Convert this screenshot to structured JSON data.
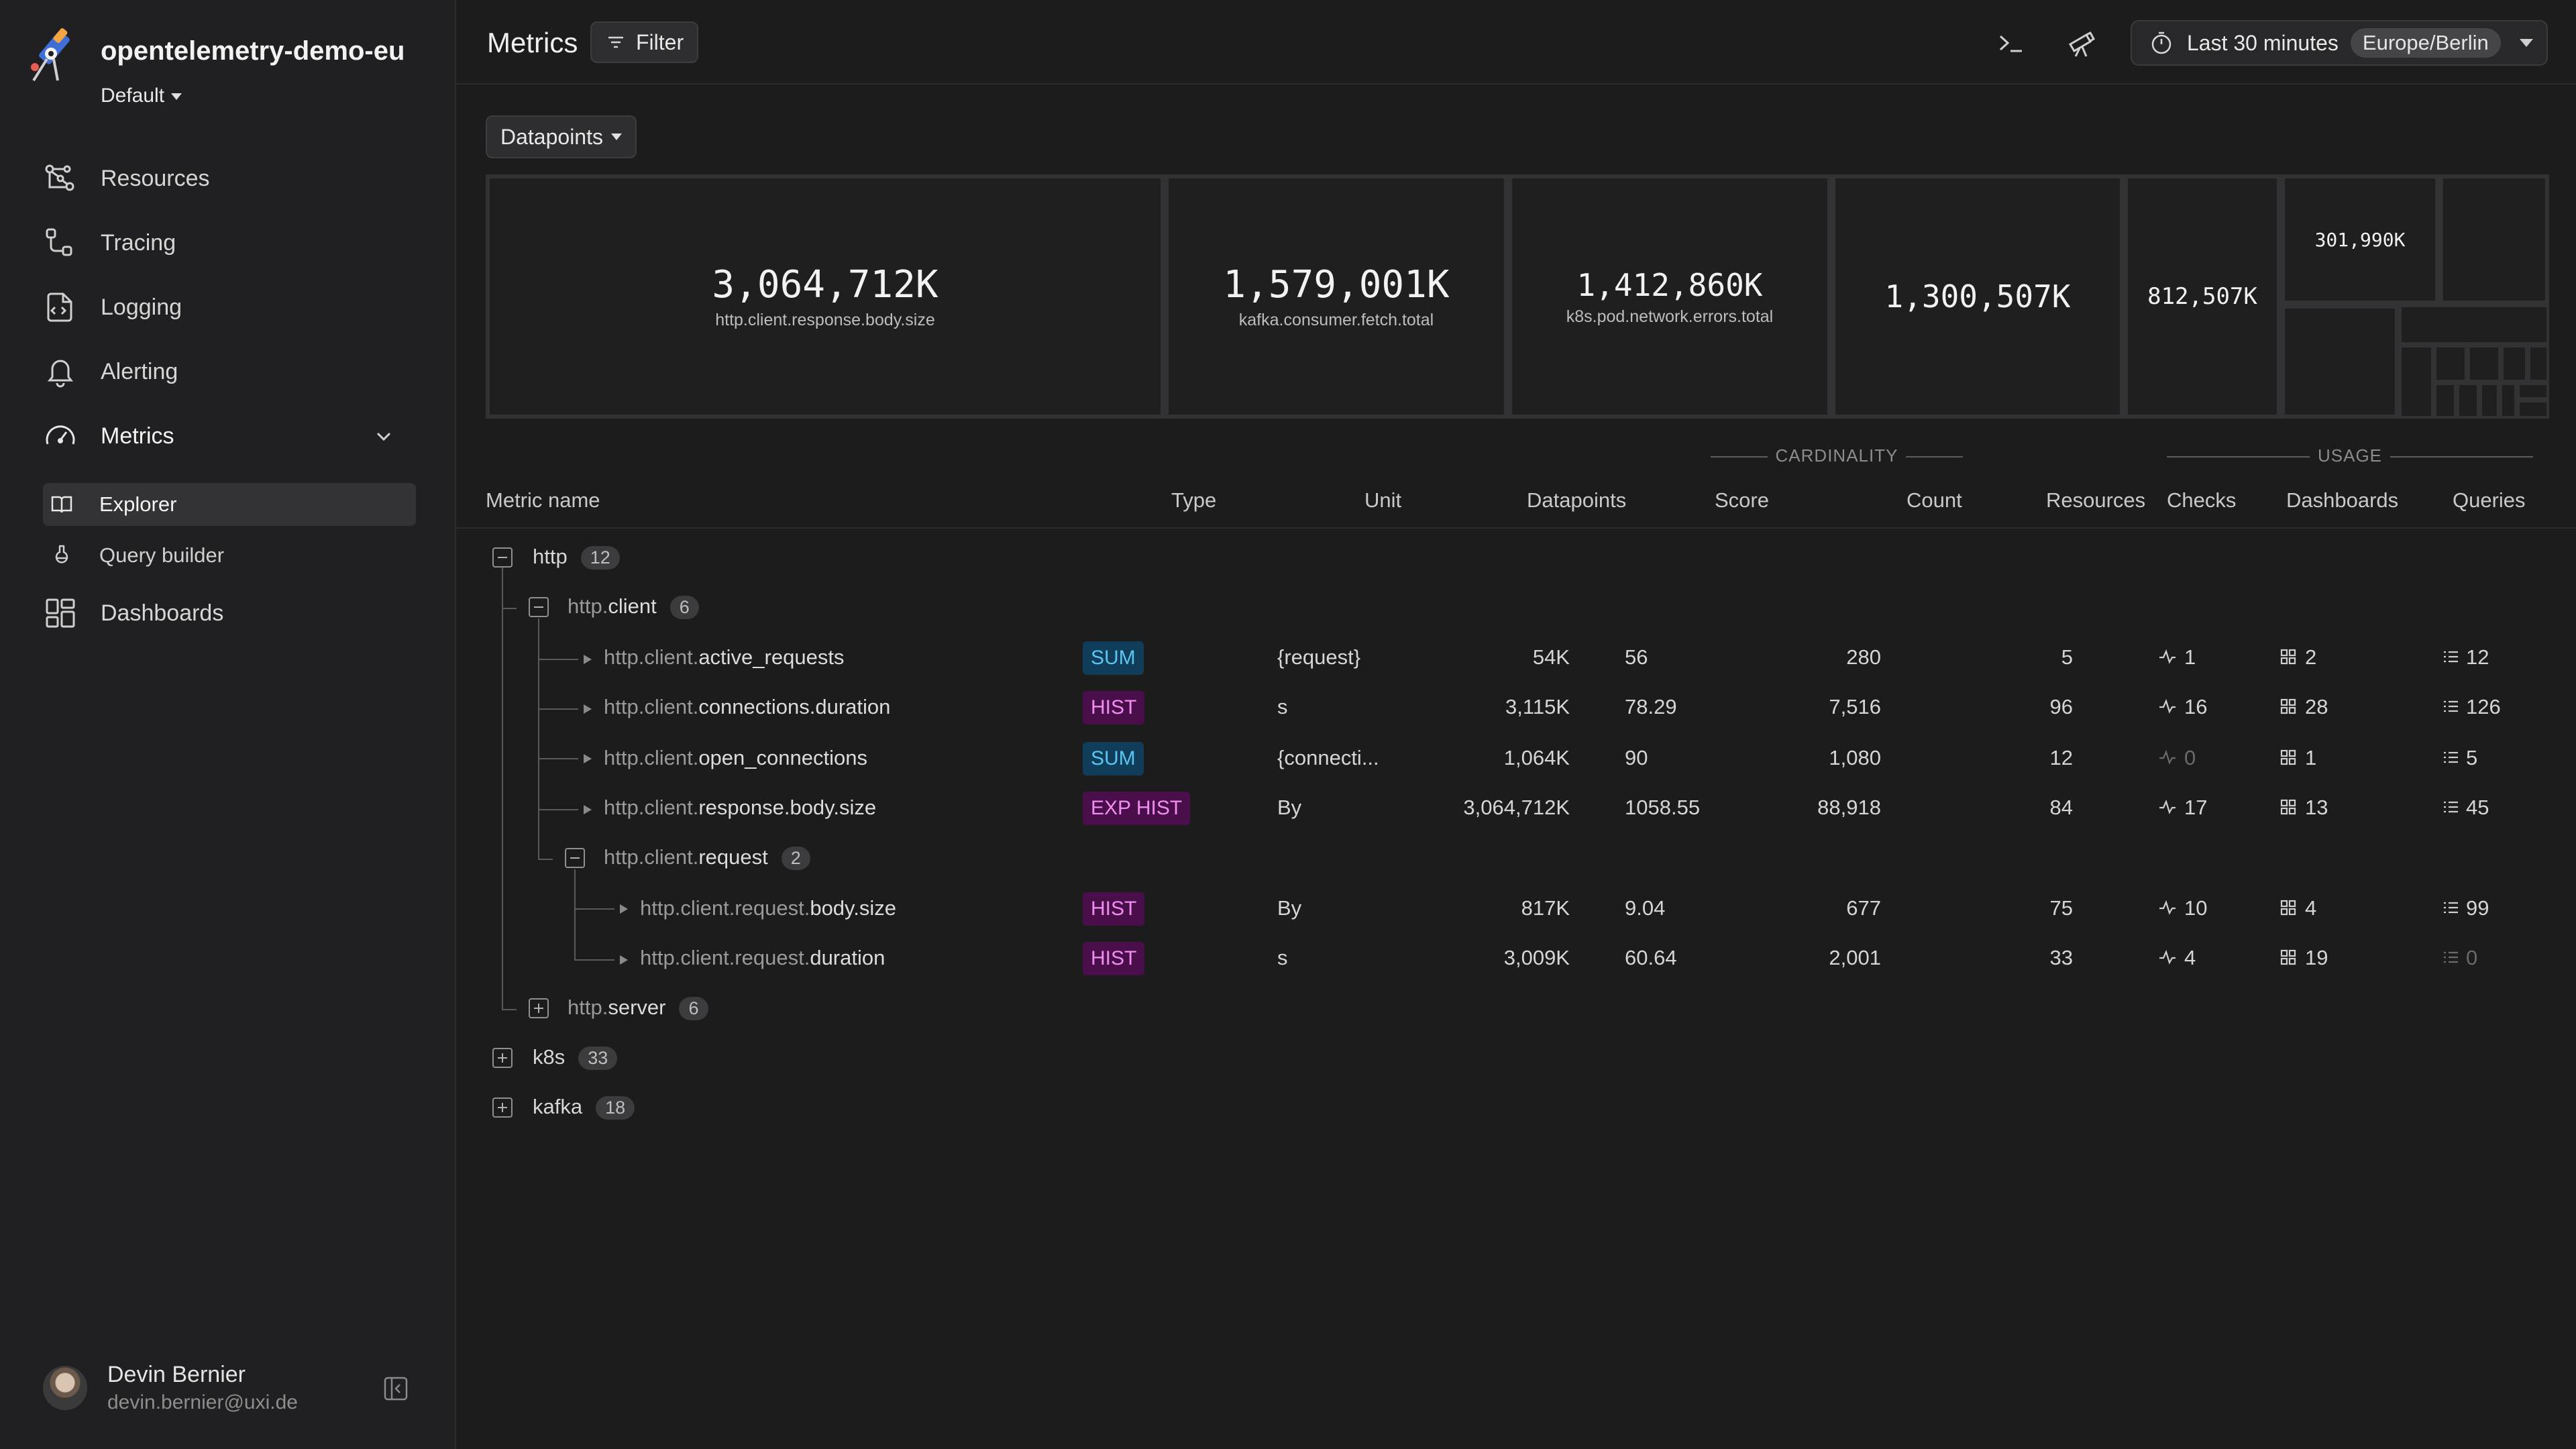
{
  "workspace": {
    "name": "opentelemetry-demo-eu",
    "env": "Default"
  },
  "nav": [
    {
      "label": "Resources",
      "icon": "resources-icon"
    },
    {
      "label": "Tracing",
      "icon": "tracing-icon"
    },
    {
      "label": "Logging",
      "icon": "logging-icon"
    },
    {
      "label": "Alerting",
      "icon": "bell-icon"
    },
    {
      "label": "Metrics",
      "icon": "gauge-icon"
    },
    {
      "label": "Dashboards",
      "icon": "dashboards-icon"
    }
  ],
  "metrics_sub": [
    {
      "label": "Explorer",
      "icon": "book-icon"
    },
    {
      "label": "Query builder",
      "icon": "flask-icon"
    }
  ],
  "user": {
    "name": "Devin Bernier",
    "email": "devin.bernier@uxi.de"
  },
  "header": {
    "title": "Metrics",
    "filter_label": "Filter",
    "time_range": "Last 30 minutes",
    "timezone": "Europe/Berlin"
  },
  "treemap": {
    "selector": "Datapoints",
    "tiles": [
      {
        "value": "3,064,712K",
        "name": "http.client.response.body.size"
      },
      {
        "value": "1,579,001K",
        "name": "kafka.consumer.fetch.total"
      },
      {
        "value": "1,412,860K",
        "name": "k8s.pod.network.errors.total"
      },
      {
        "value": "1,300,507K",
        "name": ""
      },
      {
        "value": "812,507K",
        "name": ""
      },
      {
        "value": "301,990K",
        "name": ""
      }
    ]
  },
  "table": {
    "columns": {
      "name": "Metric name",
      "type": "Type",
      "unit": "Unit",
      "datapoints": "Datapoints",
      "score": "Score",
      "count": "Count",
      "resources": "Resources",
      "checks": "Checks",
      "dashboards": "Dashboards",
      "queries": "Queries"
    },
    "groups": {
      "cardinality": "CARDINALITY",
      "usage": "USAGE"
    },
    "groups_rows": {
      "http": {
        "label": "http",
        "count": "12"
      },
      "http_client": {
        "label_pre": "http.",
        "label_suf": "client",
        "count": "6"
      },
      "http_client_request": {
        "label_pre": "http.client.",
        "label_suf": "request",
        "count": "2"
      },
      "http_server": {
        "label_pre": "http.",
        "label_suf": "server",
        "count": "6"
      },
      "k8s": {
        "label": "k8s",
        "count": "33"
      },
      "kafka": {
        "label": "kafka",
        "count": "18"
      }
    },
    "rows": [
      {
        "pre": "http.client.",
        "suf": "active_requests",
        "type": "SUM",
        "unit": "{request}",
        "datapoints": "54K",
        "score": "56",
        "count": "280",
        "resources": "5",
        "checks": "1",
        "dashboards": "2",
        "queries": "12"
      },
      {
        "pre": "http.client.",
        "suf": "connections.duration",
        "type": "HIST",
        "unit": "s",
        "datapoints": "3,115K",
        "score": "78.29",
        "count": "7,516",
        "resources": "96",
        "checks": "16",
        "dashboards": "28",
        "queries": "126"
      },
      {
        "pre": "http.client.",
        "suf": "open_connections",
        "type": "SUM",
        "unit": "{connecti...",
        "datapoints": "1,064K",
        "score": "90",
        "count": "1,080",
        "resources": "12",
        "checks": "0",
        "dashboards": "1",
        "queries": "5"
      },
      {
        "pre": "http.client.",
        "suf": "response.body.size",
        "type": "EXP HIST",
        "unit": "By",
        "datapoints": "3,064,712K",
        "score": "1058.55",
        "count": "88,918",
        "resources": "84",
        "checks": "17",
        "dashboards": "13",
        "queries": "45"
      },
      {
        "pre": "http.client.request.",
        "suf": "body.size",
        "type": "HIST",
        "unit": "By",
        "datapoints": "817K",
        "score": "9.04",
        "count": "677",
        "resources": "75",
        "checks": "10",
        "dashboards": "4",
        "queries": "99"
      },
      {
        "pre": "http.client.request.",
        "suf": "duration",
        "type": "HIST",
        "unit": "s",
        "datapoints": "3,009K",
        "score": "60.64",
        "count": "2,001",
        "resources": "33",
        "checks": "4",
        "dashboards": "19",
        "queries": "0"
      }
    ]
  },
  "colors": {
    "sum_badge": "#5cc4f0",
    "hist_badge": "#f08ef0",
    "background": "#1c1c1d",
    "sidebar": "#202022"
  }
}
